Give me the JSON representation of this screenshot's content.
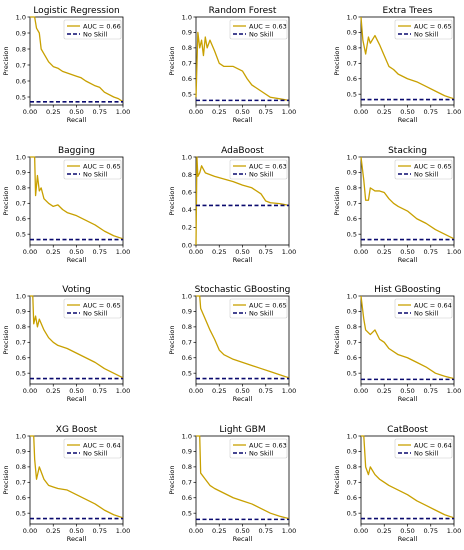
{
  "chart_data": [
    {
      "type": "line",
      "title": "Logistic Regression",
      "xlabel": "Recall",
      "ylabel": "Precision",
      "xlim": [
        0,
        1
      ],
      "ylim": [
        0.45,
        1.0
      ],
      "yticks": [
        "0.5",
        "0.6",
        "0.7",
        "0.8",
        "0.9",
        "1.0"
      ],
      "xticks": [
        "0.00",
        "0.25",
        "0.50",
        "0.75",
        "1.00"
      ],
      "legend_position": "top-right",
      "series": [
        {
          "name": "AUC = 0.66",
          "color": "#c8a000",
          "x": [
            0,
            0.05,
            0.07,
            0.1,
            0.12,
            0.15,
            0.2,
            0.25,
            0.3,
            0.35,
            0.4,
            0.5,
            0.55,
            0.6,
            0.7,
            0.75,
            0.8,
            0.9,
            0.95,
            1.0
          ],
          "y": [
            1.0,
            1.0,
            0.93,
            0.9,
            0.8,
            0.77,
            0.72,
            0.69,
            0.68,
            0.66,
            0.65,
            0.63,
            0.62,
            0.6,
            0.57,
            0.56,
            0.53,
            0.5,
            0.49,
            0.47
          ]
        },
        {
          "name": "No Skill",
          "color": "#0a0a6e",
          "dashed": true,
          "x": [
            0,
            1
          ],
          "y": [
            0.47,
            0.47
          ]
        }
      ]
    },
    {
      "type": "line",
      "title": "Random Forest",
      "xlabel": "Recall",
      "ylabel": "Precision",
      "xlim": [
        0,
        1
      ],
      "ylim": [
        0.43,
        1.0
      ],
      "yticks": [
        "0.5",
        "0.6",
        "0.7",
        "0.8",
        "0.9",
        "1.0"
      ],
      "xticks": [
        "0.00",
        "0.25",
        "0.50",
        "0.75",
        "1.00"
      ],
      "legend_position": "top-right",
      "series": [
        {
          "name": "AUC = 0.63",
          "color": "#c8a000",
          "x": [
            0,
            0.02,
            0.04,
            0.06,
            0.08,
            0.1,
            0.12,
            0.15,
            0.2,
            0.25,
            0.3,
            0.4,
            0.5,
            0.55,
            0.6,
            0.7,
            0.8,
            0.9,
            1.0
          ],
          "y": [
            0.48,
            0.9,
            0.8,
            0.85,
            0.75,
            0.87,
            0.8,
            0.85,
            0.78,
            0.7,
            0.68,
            0.68,
            0.65,
            0.6,
            0.56,
            0.52,
            0.48,
            0.47,
            0.46
          ]
        },
        {
          "name": "No Skill",
          "color": "#0a0a6e",
          "dashed": true,
          "x": [
            0,
            1
          ],
          "y": [
            0.46,
            0.46
          ]
        }
      ]
    },
    {
      "type": "line",
      "title": "Extra Trees",
      "xlabel": "Recall",
      "ylabel": "Precision",
      "xlim": [
        0,
        1
      ],
      "ylim": [
        0.43,
        1.0
      ],
      "yticks": [
        "0.5",
        "0.6",
        "0.7",
        "0.8",
        "0.9",
        "1.0"
      ],
      "xticks": [
        "0.00",
        "0.25",
        "0.50",
        "0.75",
        "1.00"
      ],
      "legend_position": "top-right",
      "series": [
        {
          "name": "AUC = 0.65",
          "color": "#c8a000",
          "x": [
            0,
            0.02,
            0.05,
            0.08,
            0.1,
            0.15,
            0.2,
            0.25,
            0.3,
            0.35,
            0.4,
            0.5,
            0.6,
            0.7,
            0.8,
            0.9,
            1.0
          ],
          "y": [
            1.0,
            0.85,
            0.76,
            0.87,
            0.83,
            0.88,
            0.82,
            0.75,
            0.68,
            0.66,
            0.63,
            0.6,
            0.58,
            0.55,
            0.52,
            0.49,
            0.47
          ]
        },
        {
          "name": "No Skill",
          "color": "#0a0a6e",
          "dashed": true,
          "x": [
            0,
            1
          ],
          "y": [
            0.465,
            0.465
          ]
        }
      ]
    },
    {
      "type": "line",
      "title": "Bagging",
      "xlabel": "Recall",
      "ylabel": "Precision",
      "xlim": [
        0,
        1
      ],
      "ylim": [
        0.43,
        1.0
      ],
      "yticks": [
        "0.5",
        "0.6",
        "0.7",
        "0.8",
        "0.9",
        "1.0"
      ],
      "xticks": [
        "0.00",
        "0.25",
        "0.50",
        "0.75",
        "1.00"
      ],
      "legend_position": "top-right",
      "series": [
        {
          "name": "AUC = 0.65",
          "color": "#c8a000",
          "x": [
            0,
            0.05,
            0.06,
            0.08,
            0.1,
            0.12,
            0.15,
            0.2,
            0.25,
            0.3,
            0.35,
            0.4,
            0.5,
            0.6,
            0.7,
            0.8,
            0.9,
            1.0
          ],
          "y": [
            1.0,
            1.0,
            0.75,
            0.88,
            0.78,
            0.8,
            0.73,
            0.7,
            0.68,
            0.69,
            0.66,
            0.64,
            0.62,
            0.59,
            0.56,
            0.52,
            0.49,
            0.47
          ]
        },
        {
          "name": "No Skill",
          "color": "#0a0a6e",
          "dashed": true,
          "x": [
            0,
            1
          ],
          "y": [
            0.465,
            0.465
          ]
        }
      ]
    },
    {
      "type": "line",
      "title": "AdaBoost",
      "xlabel": "Recall",
      "ylabel": "Precision",
      "xlim": [
        0,
        1
      ],
      "ylim": [
        0.0,
        1.0
      ],
      "yticks": [
        "0.0",
        "0.2",
        "0.4",
        "0.6",
        "0.8",
        "1.0"
      ],
      "xticks": [
        "0.00",
        "0.25",
        "0.50",
        "0.75",
        "1.00"
      ],
      "legend_position": "top-right",
      "series": [
        {
          "name": "AUC = 0.63",
          "color": "#c8a000",
          "x": [
            0,
            0.01,
            0.02,
            0.04,
            0.06,
            0.1,
            0.2,
            0.3,
            0.4,
            0.5,
            0.6,
            0.7,
            0.75,
            0.8,
            0.9,
            1.0
          ],
          "y": [
            0.0,
            1.0,
            0.78,
            0.82,
            0.9,
            0.82,
            0.78,
            0.75,
            0.72,
            0.68,
            0.65,
            0.58,
            0.5,
            0.48,
            0.47,
            0.45
          ]
        },
        {
          "name": "No Skill",
          "color": "#0a0a6e",
          "dashed": true,
          "x": [
            0,
            1
          ],
          "y": [
            0.45,
            0.45
          ]
        }
      ]
    },
    {
      "type": "line",
      "title": "Stacking",
      "xlabel": "Recall",
      "ylabel": "Precision",
      "xlim": [
        0,
        1
      ],
      "ylim": [
        0.43,
        1.0
      ],
      "yticks": [
        "0.5",
        "0.6",
        "0.7",
        "0.8",
        "0.9",
        "1.0"
      ],
      "xticks": [
        "0.00",
        "0.25",
        "0.50",
        "0.75",
        "1.00"
      ],
      "legend_position": "top-right",
      "series": [
        {
          "name": "AUC = 0.65",
          "color": "#c8a000",
          "x": [
            0,
            0.03,
            0.05,
            0.08,
            0.1,
            0.15,
            0.2,
            0.25,
            0.3,
            0.35,
            0.4,
            0.5,
            0.6,
            0.7,
            0.8,
            0.9,
            1.0
          ],
          "y": [
            1.0,
            0.85,
            0.72,
            0.72,
            0.8,
            0.78,
            0.78,
            0.77,
            0.73,
            0.7,
            0.68,
            0.65,
            0.6,
            0.57,
            0.53,
            0.5,
            0.47
          ]
        },
        {
          "name": "No Skill",
          "color": "#0a0a6e",
          "dashed": true,
          "x": [
            0,
            1
          ],
          "y": [
            0.465,
            0.465
          ]
        }
      ]
    },
    {
      "type": "line",
      "title": "Voting",
      "xlabel": "Recall",
      "ylabel": "Precision",
      "xlim": [
        0,
        1
      ],
      "ylim": [
        0.43,
        1.0
      ],
      "yticks": [
        "0.5",
        "0.6",
        "0.7",
        "0.8",
        "0.9",
        "1.0"
      ],
      "xticks": [
        "0.00",
        "0.25",
        "0.50",
        "0.75",
        "1.00"
      ],
      "legend_position": "top-right",
      "series": [
        {
          "name": "AUC = 0.65",
          "color": "#c8a000",
          "x": [
            0,
            0.03,
            0.04,
            0.06,
            0.08,
            0.1,
            0.15,
            0.2,
            0.25,
            0.3,
            0.4,
            0.5,
            0.6,
            0.7,
            0.8,
            0.9,
            1.0
          ],
          "y": [
            1.0,
            1.0,
            0.82,
            0.87,
            0.8,
            0.85,
            0.78,
            0.73,
            0.7,
            0.68,
            0.66,
            0.63,
            0.6,
            0.57,
            0.53,
            0.5,
            0.47
          ]
        },
        {
          "name": "No Skill",
          "color": "#0a0a6e",
          "dashed": true,
          "x": [
            0,
            1
          ],
          "y": [
            0.465,
            0.465
          ]
        }
      ]
    },
    {
      "type": "line",
      "title": "Stochastic GBoosting",
      "xlabel": "Recall",
      "ylabel": "Precision",
      "xlim": [
        0,
        1
      ],
      "ylim": [
        0.43,
        1.0
      ],
      "yticks": [
        "0.5",
        "0.6",
        "0.7",
        "0.8",
        "0.9",
        "1.0"
      ],
      "xticks": [
        "0.00",
        "0.25",
        "0.50",
        "0.75",
        "1.00"
      ],
      "legend_position": "top-right",
      "series": [
        {
          "name": "AUC = 0.65",
          "color": "#c8a000",
          "x": [
            0,
            0.04,
            0.05,
            0.1,
            0.15,
            0.2,
            0.25,
            0.3,
            0.4,
            0.5,
            0.6,
            0.7,
            0.8,
            0.9,
            1.0
          ],
          "y": [
            1.0,
            1.0,
            0.92,
            0.85,
            0.78,
            0.72,
            0.65,
            0.62,
            0.59,
            0.57,
            0.55,
            0.53,
            0.51,
            0.49,
            0.47
          ]
        },
        {
          "name": "No Skill",
          "color": "#0a0a6e",
          "dashed": true,
          "x": [
            0,
            1
          ],
          "y": [
            0.465,
            0.465
          ]
        }
      ]
    },
    {
      "type": "line",
      "title": "Hist GBoosting",
      "xlabel": "Recall",
      "ylabel": "Precision",
      "xlim": [
        0,
        1
      ],
      "ylim": [
        0.43,
        1.0
      ],
      "yticks": [
        "0.5",
        "0.6",
        "0.7",
        "0.8",
        "0.9",
        "1.0"
      ],
      "xticks": [
        "0.00",
        "0.25",
        "0.50",
        "0.75",
        "1.00"
      ],
      "legend_position": "top-right",
      "series": [
        {
          "name": "AUC = 0.64",
          "color": "#c8a000",
          "x": [
            0,
            0.03,
            0.05,
            0.1,
            0.15,
            0.2,
            0.25,
            0.3,
            0.4,
            0.5,
            0.6,
            0.7,
            0.8,
            0.9,
            1.0
          ],
          "y": [
            1.0,
            0.85,
            0.78,
            0.75,
            0.78,
            0.72,
            0.7,
            0.66,
            0.62,
            0.6,
            0.57,
            0.54,
            0.5,
            0.48,
            0.465
          ]
        },
        {
          "name": "No Skill",
          "color": "#0a0a6e",
          "dashed": true,
          "x": [
            0,
            1
          ],
          "y": [
            0.46,
            0.46
          ]
        }
      ]
    },
    {
      "type": "line",
      "title": "XG Boost",
      "xlabel": "Recall",
      "ylabel": "Precision",
      "xlim": [
        0,
        1
      ],
      "ylim": [
        0.43,
        1.0
      ],
      "yticks": [
        "0.5",
        "0.6",
        "0.7",
        "0.8",
        "0.9",
        "1.0"
      ],
      "xticks": [
        "0.00",
        "0.25",
        "0.50",
        "0.75",
        "1.00"
      ],
      "legend_position": "top-right",
      "series": [
        {
          "name": "AUC = 0.64",
          "color": "#c8a000",
          "x": [
            0,
            0.04,
            0.05,
            0.07,
            0.1,
            0.15,
            0.2,
            0.25,
            0.3,
            0.4,
            0.5,
            0.6,
            0.7,
            0.8,
            0.9,
            1.0
          ],
          "y": [
            1.0,
            1.0,
            0.85,
            0.72,
            0.8,
            0.72,
            0.68,
            0.67,
            0.66,
            0.65,
            0.62,
            0.59,
            0.56,
            0.52,
            0.49,
            0.47
          ]
        },
        {
          "name": "No Skill",
          "color": "#0a0a6e",
          "dashed": true,
          "x": [
            0,
            1
          ],
          "y": [
            0.465,
            0.465
          ]
        }
      ]
    },
    {
      "type": "line",
      "title": "Light GBM",
      "xlabel": "Recall",
      "ylabel": "Precision",
      "xlim": [
        0,
        1
      ],
      "ylim": [
        0.43,
        1.0
      ],
      "yticks": [
        "0.5",
        "0.6",
        "0.7",
        "0.8",
        "0.9",
        "1.0"
      ],
      "xticks": [
        "0.00",
        "0.25",
        "0.50",
        "0.75",
        "1.00"
      ],
      "legend_position": "top-right",
      "series": [
        {
          "name": "AUC = 0.63",
          "color": "#c8a000",
          "x": [
            0,
            0.04,
            0.05,
            0.1,
            0.15,
            0.2,
            0.3,
            0.4,
            0.5,
            0.6,
            0.7,
            0.8,
            0.9,
            1.0
          ],
          "y": [
            1.0,
            1.0,
            0.76,
            0.72,
            0.68,
            0.66,
            0.63,
            0.6,
            0.58,
            0.56,
            0.53,
            0.5,
            0.48,
            0.465
          ]
        },
        {
          "name": "No Skill",
          "color": "#0a0a6e",
          "dashed": true,
          "x": [
            0,
            1
          ],
          "y": [
            0.46,
            0.46
          ]
        }
      ]
    },
    {
      "type": "line",
      "title": "CatBoost",
      "xlabel": "Recall",
      "ylabel": "Precision",
      "xlim": [
        0,
        1
      ],
      "ylim": [
        0.43,
        1.0
      ],
      "yticks": [
        "0.5",
        "0.6",
        "0.7",
        "0.8",
        "0.9",
        "1.0"
      ],
      "xticks": [
        "0.00",
        "0.25",
        "0.50",
        "0.75",
        "1.00"
      ],
      "legend_position": "top-right",
      "series": [
        {
          "name": "AUC = 0.64",
          "color": "#c8a000",
          "x": [
            0,
            0.03,
            0.05,
            0.08,
            0.1,
            0.15,
            0.2,
            0.25,
            0.3,
            0.4,
            0.5,
            0.6,
            0.7,
            0.8,
            0.9,
            1.0
          ],
          "y": [
            1.0,
            1.0,
            0.8,
            0.75,
            0.8,
            0.75,
            0.72,
            0.7,
            0.68,
            0.65,
            0.62,
            0.58,
            0.55,
            0.52,
            0.49,
            0.47
          ]
        },
        {
          "name": "No Skill",
          "color": "#0a0a6e",
          "dashed": true,
          "x": [
            0,
            1
          ],
          "y": [
            0.465,
            0.465
          ]
        }
      ]
    }
  ]
}
